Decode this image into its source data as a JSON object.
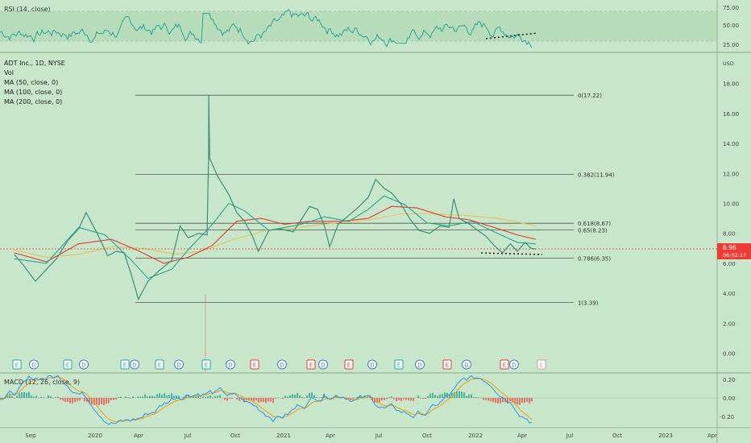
{
  "rsi": {
    "label": "RSI (14, close)",
    "ticks": [
      "75.00",
      "50.00",
      "25.00"
    ]
  },
  "main": {
    "title": "ADT Inc., 1D, NYSE",
    "indicators": [
      "Vol",
      "MA (50, close, 0)",
      "MA (100, close, 0)",
      "MA (200, close, 0)"
    ],
    "currency": "USD",
    "last_price": "6.96",
    "countdown": "06:02:17"
  },
  "macd": {
    "label": "MACD (12, 26, close, 9)",
    "ticks": [
      "0.20",
      "0.00",
      "-0.20"
    ]
  },
  "x_labels": [
    "Sep",
    "2020",
    "Apr",
    "Jul",
    "Oct",
    "2021",
    "Apr",
    "Jul",
    "Oct",
    "2022",
    "Apr",
    "Jul",
    "Oct",
    "2023",
    "Apr"
  ],
  "markers": [
    "E",
    "D",
    "E",
    "D",
    "E",
    "D",
    "E",
    "D",
    "E",
    "D",
    "E",
    "D",
    "E",
    "D",
    "E",
    "D",
    "E",
    "D",
    "E",
    "D",
    "E",
    "D",
    "E",
    "D",
    "E",
    "D",
    "E"
  ],
  "chart_data": {
    "type": "line",
    "price_ticks": [
      18.0,
      16.0,
      14.0,
      12.0,
      10.0,
      8.0,
      6.0,
      4.0,
      2.0,
      0.0
    ],
    "fib_levels": [
      {
        "label": "0(17.22)",
        "value": 17.22
      },
      {
        "label": "0.382(11.94)",
        "value": 11.94
      },
      {
        "label": "0.618(8.67)",
        "value": 8.67
      },
      {
        "label": "0.65(8.23)",
        "value": 8.23
      },
      {
        "label": "0.786(6.35)",
        "value": 6.35
      },
      {
        "label": "1(3.39)",
        "value": 3.39
      }
    ],
    "price_series": [
      [
        "2019-08-01",
        6.6
      ],
      [
        "2019-08-20",
        5.8
      ],
      [
        "2019-09-10",
        4.8
      ],
      [
        "2019-10-01",
        5.6
      ],
      [
        "2019-10-20",
        6.3
      ],
      [
        "2019-11-10",
        7.5
      ],
      [
        "2019-12-01",
        8.3
      ],
      [
        "2019-12-15",
        9.4
      ],
      [
        "2020-01-05",
        8.0
      ],
      [
        "2020-01-25",
        6.5
      ],
      [
        "2020-02-10",
        6.8
      ],
      [
        "2020-02-25",
        6.7
      ],
      [
        "2020-03-10",
        5.2
      ],
      [
        "2020-03-23",
        3.6
      ],
      [
        "2020-04-10",
        4.8
      ],
      [
        "2020-05-01",
        5.5
      ],
      [
        "2020-05-25",
        6.2
      ],
      [
        "2020-06-10",
        8.5
      ],
      [
        "2020-06-25",
        7.7
      ],
      [
        "2020-07-15",
        8.0
      ],
      [
        "2020-07-31",
        7.9
      ],
      [
        "2020-08-03",
        13.6
      ],
      [
        "2020-08-03",
        17.22
      ],
      [
        "2020-08-05",
        13.0
      ],
      [
        "2020-08-20",
        11.8
      ],
      [
        "2020-09-10",
        10.6
      ],
      [
        "2020-09-25",
        9.4
      ],
      [
        "2020-10-10",
        8.8
      ],
      [
        "2020-10-25",
        7.8
      ],
      [
        "2020-11-05",
        6.8
      ],
      [
        "2020-11-25",
        8.2
      ],
      [
        "2020-12-15",
        8.3
      ],
      [
        "2021-01-10",
        8.1
      ],
      [
        "2021-01-25",
        8.9
      ],
      [
        "2021-02-10",
        9.8
      ],
      [
        "2021-02-25",
        9.6
      ],
      [
        "2021-03-10",
        8.5
      ],
      [
        "2021-03-20",
        7.1
      ],
      [
        "2021-04-05",
        8.6
      ],
      [
        "2021-04-25",
        9.2
      ],
      [
        "2021-05-15",
        9.8
      ],
      [
        "2021-06-01",
        10.4
      ],
      [
        "2021-06-15",
        11.6
      ],
      [
        "2021-07-01",
        11.0
      ],
      [
        "2021-07-15",
        10.7
      ],
      [
        "2021-08-01",
        10.0
      ],
      [
        "2021-08-20",
        8.9
      ],
      [
        "2021-09-05",
        8.2
      ],
      [
        "2021-09-25",
        8.0
      ],
      [
        "2021-10-15",
        8.5
      ],
      [
        "2021-11-01",
        8.4
      ],
      [
        "2021-11-10",
        10.3
      ],
      [
        "2021-11-20",
        9.0
      ],
      [
        "2021-12-10",
        8.6
      ],
      [
        "2021-12-25",
        8.2
      ],
      [
        "2022-01-10",
        7.8
      ],
      [
        "2022-01-25",
        7.2
      ],
      [
        "2022-02-10",
        6.7
      ],
      [
        "2022-02-25",
        7.3
      ],
      [
        "2022-03-10",
        6.8
      ],
      [
        "2022-03-25",
        7.4
      ],
      [
        "2022-04-05",
        7.0
      ],
      [
        "2022-04-14",
        6.96
      ]
    ],
    "ma50": [
      [
        "2019-08-01",
        6.3
      ],
      [
        "2019-10-01",
        6.0
      ],
      [
        "2019-12-01",
        8.4
      ],
      [
        "2020-01-20",
        7.9
      ],
      [
        "2020-03-10",
        6.2
      ],
      [
        "2020-04-10",
        5.0
      ],
      [
        "2020-05-25",
        5.6
      ],
      [
        "2020-06-25",
        6.9
      ],
      [
        "2020-08-10",
        8.6
      ],
      [
        "2020-09-10",
        10.0
      ],
      [
        "2020-10-10",
        9.5
      ],
      [
        "2020-11-25",
        8.2
      ],
      [
        "2021-01-25",
        8.6
      ],
      [
        "2021-03-10",
        9.1
      ],
      [
        "2021-04-25",
        8.8
      ],
      [
        "2021-06-01",
        9.6
      ],
      [
        "2021-07-01",
        10.5
      ],
      [
        "2021-08-10",
        9.9
      ],
      [
        "2021-09-20",
        8.7
      ],
      [
        "2021-11-01",
        8.5
      ],
      [
        "2021-12-15",
        8.8
      ],
      [
        "2022-01-25",
        8.1
      ],
      [
        "2022-03-10",
        7.4
      ],
      [
        "2022-04-14",
        7.3
      ]
    ],
    "ma100": [
      [
        "2019-08-01",
        6.7
      ],
      [
        "2019-10-01",
        6.1
      ],
      [
        "2019-12-01",
        7.3
      ],
      [
        "2020-02-01",
        7.6
      ],
      [
        "2020-03-25",
        6.8
      ],
      [
        "2020-05-10",
        6.0
      ],
      [
        "2020-06-25",
        6.4
      ],
      [
        "2020-08-10",
        7.2
      ],
      [
        "2020-09-25",
        8.8
      ],
      [
        "2020-11-10",
        9.0
      ],
      [
        "2020-12-25",
        8.6
      ],
      [
        "2021-02-10",
        8.8
      ],
      [
        "2021-04-10",
        8.8
      ],
      [
        "2021-06-01",
        9.0
      ],
      [
        "2021-07-15",
        9.8
      ],
      [
        "2021-09-01",
        9.7
      ],
      [
        "2021-10-25",
        9.1
      ],
      [
        "2021-12-10",
        8.9
      ],
      [
        "2022-01-25",
        8.4
      ],
      [
        "2022-03-10",
        7.9
      ],
      [
        "2022-04-14",
        7.6
      ]
    ],
    "ma200": [
      [
        "2019-08-01",
        6.9
      ],
      [
        "2019-10-01",
        6.4
      ],
      [
        "2019-12-01",
        6.6
      ],
      [
        "2020-02-01",
        7.1
      ],
      [
        "2020-04-01",
        7.0
      ],
      [
        "2020-06-01",
        6.6
      ],
      [
        "2020-07-20",
        6.8
      ],
      [
        "2020-09-20",
        7.6
      ],
      [
        "2020-11-20",
        8.2
      ],
      [
        "2021-01-20",
        8.4
      ],
      [
        "2021-04-01",
        8.7
      ],
      [
        "2021-06-01",
        8.9
      ],
      [
        "2021-08-01",
        9.3
      ],
      [
        "2021-10-01",
        9.3
      ],
      [
        "2021-12-01",
        9.2
      ],
      [
        "2022-02-01",
        9.0
      ],
      [
        "2022-04-01",
        8.6
      ],
      [
        "2022-04-14",
        8.5
      ]
    ]
  }
}
